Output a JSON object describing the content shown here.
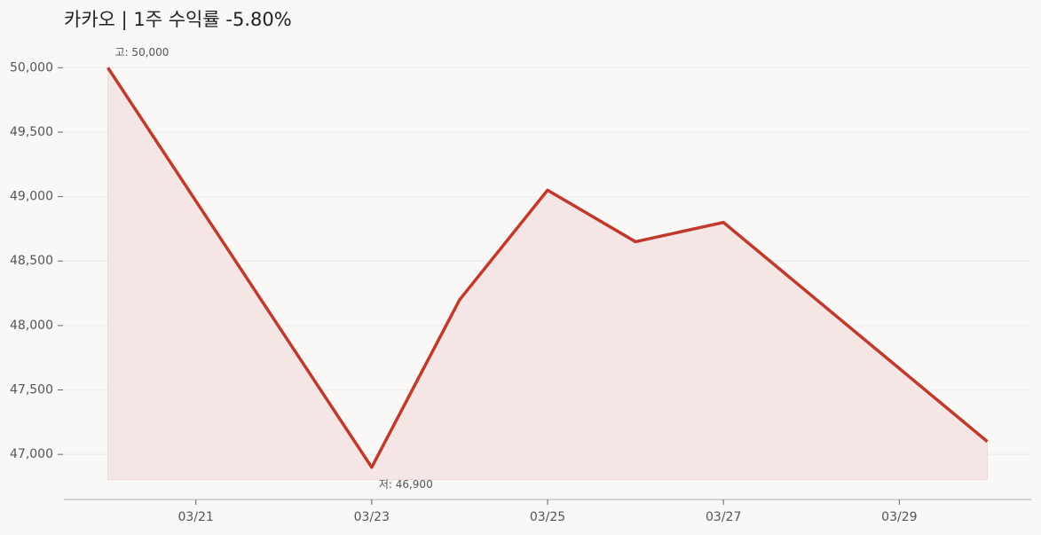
{
  "chart_data": {
    "type": "line",
    "title": "카카오  |  1주 수익률  -5.80%",
    "x": [
      "03/20",
      "03/23",
      "03/24",
      "03/25",
      "03/26",
      "03/27",
      "03/30"
    ],
    "series": [
      {
        "name": "카카오",
        "color": "#c0392b",
        "values": [
          50000,
          46900,
          48200,
          49050,
          48650,
          48800,
          47100
        ]
      }
    ],
    "ylim": [
      46650,
      50250
    ],
    "yticks": [
      {
        "value": 47000,
        "label": "47,000"
      },
      {
        "value": 47500,
        "label": "47,500"
      },
      {
        "value": 48000,
        "label": "48,000"
      },
      {
        "value": 48500,
        "label": "48,500"
      },
      {
        "value": 49000,
        "label": "49,000"
      },
      {
        "value": 49500,
        "label": "49,500"
      },
      {
        "value": 50000,
        "label": "50,000"
      }
    ],
    "xticks": [
      "03/21",
      "03/23",
      "03/25",
      "03/27",
      "03/29"
    ],
    "grid": true,
    "area_fill": "#f5e6e5",
    "annotations": [
      {
        "text": "고: 50,000",
        "x": "03/20",
        "y": 50000
      },
      {
        "text": "저: 46,900",
        "x": "03/23",
        "y": 46900
      }
    ]
  }
}
